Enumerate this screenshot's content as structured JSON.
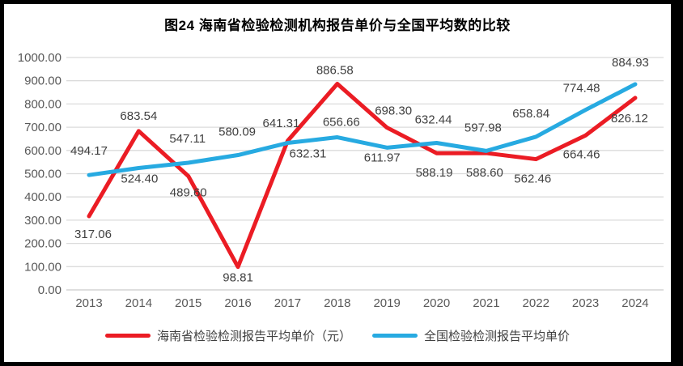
{
  "title": "图24  海南省检验检测机构报告单价与全国平均数的比较",
  "chart_data": {
    "type": "line",
    "x": [
      2013,
      2014,
      2015,
      2016,
      2017,
      2018,
      2019,
      2020,
      2021,
      2022,
      2023,
      2024
    ],
    "series": [
      {
        "name": "海南省检验检测报告平均单价（元）",
        "color": "#EB1C24",
        "values": [
          317.06,
          683.54,
          489.6,
          98.81,
          641.31,
          886.58,
          698.3,
          588.19,
          588.6,
          562.46,
          664.46,
          826.12
        ]
      },
      {
        "name": "全国检验检测报告平均单价",
        "color": "#27AAE1",
        "values": [
          494.17,
          524.4,
          547.11,
          580.09,
          632.31,
          656.66,
          611.97,
          632.44,
          597.98,
          658.84,
          774.48,
          884.93
        ]
      }
    ],
    "ylabel": "",
    "xlabel": "",
    "ylim": [
      0,
      1000
    ],
    "ytick_step": 100,
    "ytick_format": "two-decimals",
    "grid": "horizontal",
    "legend_position": "bottom",
    "value_labels": true
  },
  "colors": {
    "grid": "#DBDBDB",
    "zero_axis": "#C9C9C9",
    "axis_text": "#595959",
    "data_label_text": "#404040",
    "title_text": "#000000",
    "frame": "#000000",
    "background": "#ffffff"
  }
}
